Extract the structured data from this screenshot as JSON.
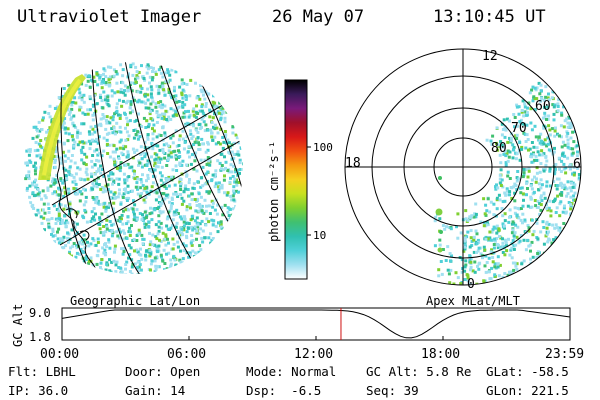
{
  "header": {
    "instrument": "Ultraviolet Imager",
    "date": "26 May 07",
    "time": "13:10:45 UT"
  },
  "panels": {
    "left_label": "Geographic Lat/Lon",
    "right_label": "Apex MLat/MLT"
  },
  "colorbar": {
    "unit": "photon cm⁻²s⁻¹",
    "ticks": [
      "100",
      "10"
    ],
    "colors": [
      "#000000",
      "#3a1a5a",
      "#7a1a7a",
      "#a0102a",
      "#d81818",
      "#f05010",
      "#f59a10",
      "#f5d020",
      "#c8e020",
      "#7fd030",
      "#40c070",
      "#30c0b0",
      "#50d0d8",
      "#a0e0f0",
      "#ffffff"
    ]
  },
  "polar": {
    "mlt_labels": [
      "12",
      "18",
      "6",
      "0"
    ],
    "mlat_labels": [
      "60",
      "70",
      "80"
    ]
  },
  "altitude_plot": {
    "ylabel": "GC Alt",
    "yticks": [
      "9.0",
      "1.8"
    ],
    "xticks": [
      "00:00",
      "06:00",
      "12:00",
      "18:00",
      "23:59"
    ],
    "current_time_hours": 13.18,
    "marker_color": "#d01010"
  },
  "status": {
    "filter": {
      "label": "Flt:",
      "value": "LBHL"
    },
    "ip": {
      "label": "IP:",
      "value": "36.0"
    },
    "door": {
      "label": "Door:",
      "value": "Open"
    },
    "gain": {
      "label": "Gain:",
      "value": "14"
    },
    "mode": {
      "label": "Mode:",
      "value": "Normal"
    },
    "dsp": {
      "label": "Dsp:",
      "value": "-6.5"
    },
    "gc_alt": {
      "label": "GC Alt:",
      "value": "5.8 Re"
    },
    "seq": {
      "label": "Seq:",
      "value": "39"
    },
    "glat": {
      "label": "GLat:",
      "value": "-58.5"
    },
    "glon": {
      "label": "GLon:",
      "value": "221.5"
    }
  }
}
